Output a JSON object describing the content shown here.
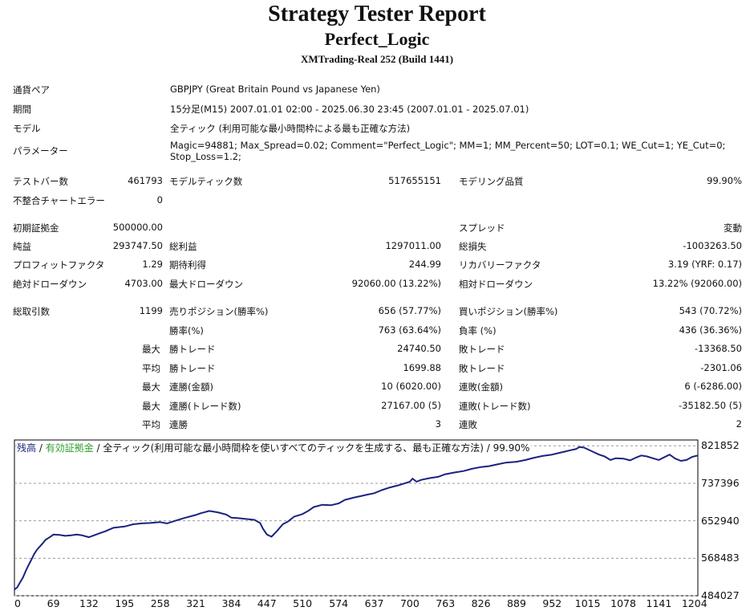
{
  "header": {
    "title": "Strategy Tester Report",
    "subtitle": "Perfect_Logic",
    "build": "XMTrading-Real 252 (Build 1441)"
  },
  "info": {
    "pair_label": "通貨ペア",
    "pair_value": "GBPJPY (Great Britain Pound vs Japanese Yen)",
    "period_label": "期間",
    "period_value": "15分足(M15) 2007.01.01 02:00 - 2025.06.30 23:45 (2007.01.01 - 2025.07.01)",
    "model_label": "モデル",
    "model_value": "全ティック (利用可能な最小時間枠による最も正確な方法)",
    "params_label": "パラメーター",
    "params_line1": "Magic=94881; Max_Spread=0.02; Comment=\"Perfect_Logic\"; MM=1; MM_Percent=50; LOT=0.1; WE_Cut=1; YE_Cut=0;",
    "params_line2": "Stop_Loss=1.2;"
  },
  "stats": {
    "test_bars_label": "テストバー数",
    "test_bars": "461793",
    "model_ticks_label": "モデルティック数",
    "model_ticks": "517655151",
    "model_quality_label": "モデリング品質",
    "model_quality": "99.90%",
    "mismatch_label": "不整合チャートエラー",
    "mismatch": "0",
    "deposit_label": "初期証拠金",
    "deposit": "500000.00",
    "spread_label": "スプレッド",
    "spread": "変動",
    "net_label": "純益",
    "net": "293747.50",
    "gross_profit_label": "総利益",
    "gross_profit": "1297011.00",
    "gross_loss_label": "総損失",
    "gross_loss": "-1003263.50",
    "pf_label": "プロフィットファクタ",
    "pf": "1.29",
    "expected_label": "期待利得",
    "expected": "244.99",
    "recovery_label": "リカバリーファクタ",
    "recovery": "3.19 (YRF: 0.17)",
    "abs_dd_label": "絶対ドローダウン",
    "abs_dd": "4703.00",
    "max_dd_label": "最大ドローダウン",
    "max_dd": "92060.00 (13.22%)",
    "rel_dd_label": "相対ドローダウン",
    "rel_dd": "13.22% (92060.00)",
    "total_trades_label": "総取引数",
    "total_trades": "1199",
    "short_label": "売りポジション(勝率%)",
    "short": "656 (57.77%)",
    "long_label": "買いポジション(勝率%)",
    "long": "543 (70.72%)",
    "win_rate_label": "勝率(%)",
    "win_rate": "763 (63.64%)",
    "loss_rate_label": "負率 (%)",
    "loss_rate": "436 (36.36%)",
    "max_label": "最大",
    "avg_label": "平均",
    "win_trade_label": "勝トレード",
    "loss_trade_label": "敗トレード",
    "max_win": "24740.50",
    "max_loss": "-13368.50",
    "avg_win": "1699.88",
    "avg_loss": "-2301.06",
    "consec_win_amt_label": "連勝(金額)",
    "consec_win_amt": "10 (6020.00)",
    "consec_loss_amt_label": "連敗(金額)",
    "consec_loss_amt": "6 (-6286.00)",
    "consec_win_trade_label": "連勝(トレード数)",
    "consec_win_trade": "27167.00 (5)",
    "consec_loss_trade_label": "連敗(トレード数)",
    "consec_loss_trade": "-35182.50 (5)",
    "avg_consec_win_label": "連勝",
    "avg_consec_win": "3",
    "avg_consec_loss_label": "連敗",
    "avg_consec_loss": "2"
  },
  "chart_data": {
    "type": "line",
    "legend": {
      "balance": "残高",
      "sep1": " / ",
      "equity": "有効証拠金",
      "rest": " / 全ティック(利用可能な最小時間枠を使いすべてのティックを生成する、最も正確な方法) / 99.90%"
    },
    "colors": {
      "line": "#1a237e",
      "equity_legend": "#2e9e2e",
      "grid": "#999999"
    },
    "xticks": [
      "0",
      "69",
      "132",
      "195",
      "258",
      "321",
      "384",
      "447",
      "510",
      "574",
      "637",
      "700",
      "763",
      "826",
      "889",
      "952",
      "1015",
      "1078",
      "1141",
      "1204"
    ],
    "yticks": [
      "821852",
      "737396",
      "652940",
      "568483",
      "484027"
    ],
    "xlim": [
      0,
      1210
    ],
    "ylim": [
      484027,
      835000
    ],
    "series": [
      {
        "x": [
          0,
          5,
          10,
          15,
          20,
          25,
          30,
          35,
          40,
          45,
          50,
          55,
          60,
          65,
          69,
          80,
          90,
          100,
          110,
          120,
          132,
          145,
          160,
          175,
          195,
          210,
          225,
          240,
          258,
          270,
          285,
          300,
          315,
          321,
          330,
          345,
          360,
          375,
          384,
          395,
          410,
          425,
          435,
          440,
          447,
          455,
          465,
          475,
          485,
          495,
          510,
          520,
          530,
          545,
          560,
          574,
          585,
          600,
          615,
          625,
          637,
          650,
          665,
          680,
          690,
          700,
          705,
          712,
          720,
          735,
          750,
          763,
          780,
          795,
          810,
          826,
          840,
          855,
          870,
          889,
          905,
          920,
          935,
          952,
          965,
          975,
          985,
          995,
          1000,
          1008,
          1015,
          1025,
          1035,
          1045,
          1055,
          1065,
          1078,
          1090,
          1100,
          1110,
          1120,
          1130,
          1141,
          1150,
          1160,
          1170,
          1180,
          1190,
          1200,
          1210
        ],
        "y": [
          498000,
          503000,
          514000,
          525000,
          540000,
          553000,
          565000,
          578000,
          588000,
          595000,
          602000,
          610000,
          614000,
          618000,
          622000,
          621000,
          619000,
          620000,
          622000,
          620000,
          616000,
          622000,
          629000,
          637000,
          640000,
          645000,
          647000,
          648000,
          650000,
          647000,
          653000,
          659000,
          664000,
          666000,
          670000,
          675000,
          672000,
          667000,
          660000,
          659000,
          657000,
          655000,
          648000,
          635000,
          622000,
          617000,
          630000,
          645000,
          652000,
          662000,
          668000,
          675000,
          684000,
          689000,
          688000,
          692000,
          700000,
          705000,
          709000,
          712000,
          715000,
          722000,
          728000,
          733000,
          737000,
          741000,
          748000,
          741000,
          745000,
          749000,
          752000,
          758000,
          762000,
          765000,
          770000,
          774000,
          776000,
          780000,
          784000,
          786000,
          790000,
          795000,
          799000,
          802000,
          806000,
          809000,
          812000,
          815000,
          819000,
          818000,
          814000,
          808000,
          802000,
          798000,
          790000,
          794000,
          793000,
          789000,
          795000,
          800000,
          798000,
          794000,
          790000,
          796000,
          802000,
          793000,
          788000,
          790000,
          797000,
          800000
        ]
      }
    ]
  }
}
